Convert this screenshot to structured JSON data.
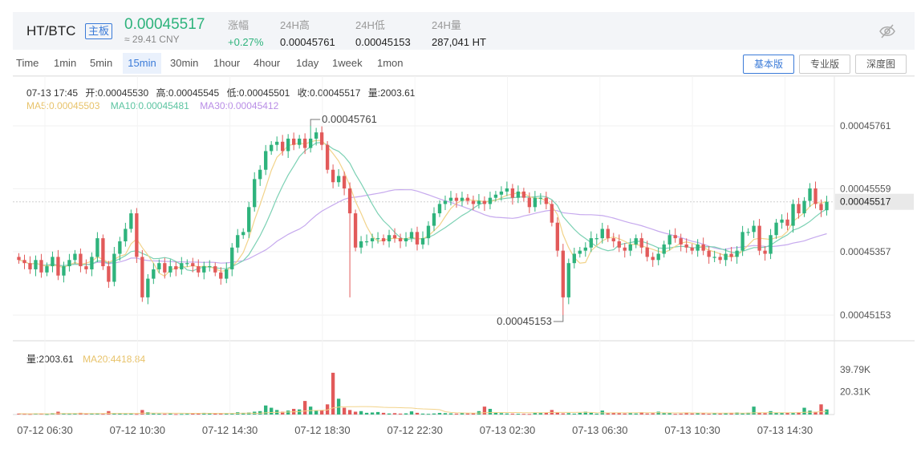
{
  "header": {
    "pair": "HT/BTC",
    "board_badge": "主板",
    "price": "0.00045517",
    "price_cny": "≈ 29.41 CNY",
    "stats": [
      {
        "label": "涨幅",
        "value": "+0.27%",
        "color": "#2eb37c"
      },
      {
        "label": "24H高",
        "value": "0.00045761"
      },
      {
        "label": "24H低",
        "value": "0.00045153"
      },
      {
        "label": "24H量",
        "value": "287,041 HT"
      }
    ],
    "hide_icon": "eye-slash-icon"
  },
  "timeframes": {
    "items": [
      "Time",
      "1min",
      "5min",
      "15min",
      "30min",
      "1hour",
      "4hour",
      "1day",
      "1week",
      "1mon"
    ],
    "active_index": 3
  },
  "view_buttons": {
    "items": [
      "基本版",
      "专业版",
      "深度图"
    ],
    "active_index": 0
  },
  "ohlc": {
    "time": "07-13 17:45",
    "open": "开:0.00045530",
    "high": "高:0.00045545",
    "low": "低:0.00045501",
    "close": "收:0.00045517",
    "volume": "量:2003.61"
  },
  "ma": {
    "ma5": "MA5:0.00045503",
    "ma10": "MA10:0.00045481",
    "ma30": "MA30:0.00045412"
  },
  "volume_info": {
    "volume": "量:2003.61",
    "ma20": "MA20:4418.84"
  },
  "colors": {
    "up": "#2eb37c",
    "down": "#e25a5a",
    "ma5": "#f2d38a",
    "ma10": "#7cd1b4",
    "ma30": "#c6a9ee",
    "accent": "#3b7bd8"
  },
  "chart_data": {
    "type": "candlestick",
    "price_axis": {
      "ticks": [
        "0.00045761",
        "0.00045559",
        "0.00045357",
        "0.00045153"
      ],
      "tick_values": [
        0.00045761,
        0.00045559,
        0.00045357,
        0.00045153
      ],
      "current": "0.00045517",
      "current_value": 0.00045517
    },
    "volume_axis": {
      "ticks": [
        "39.79K",
        "20.31K"
      ],
      "tick_values": [
        39790,
        20310
      ]
    },
    "x_labels": [
      "07-12 06:30",
      "07-12 10:30",
      "07-12 14:30",
      "07-12 18:30",
      "07-12 22:30",
      "07-13 02:30",
      "07-13 06:30",
      "07-13 10:30",
      "07-13 14:30"
    ],
    "high_marker": "0.00045761",
    "low_marker": "0.00045153",
    "closes": [
      0.0004533,
      0.0004532,
      0.000453,
      0.0004533,
      0.0004529,
      0.0004531,
      0.0004534,
      0.0004528,
      0.0004531,
      0.0004533,
      0.0004535,
      0.0004531,
      0.000453,
      0.0004534,
      0.000454,
      0.0004531,
      0.0004526,
      0.0004535,
      0.0004539,
      0.0004543,
      0.0004548,
      0.0004534,
      0.0004521,
      0.0004527,
      0.000453,
      0.0004532,
      0.0004529,
      0.0004531,
      0.000453,
      0.0004532,
      0.0004532,
      0.0004531,
      0.0004529,
      0.0004531,
      0.0004531,
      0.0004529,
      0.0004527,
      0.000453,
      0.0004537,
      0.0004541,
      0.0004542,
      0.000455,
      0.0004559,
      0.0004562,
      0.0004568,
      0.000457,
      0.0004571,
      0.0004568,
      0.0004572,
      0.000457,
      0.0004572,
      0.0004569,
      0.0004572,
      0.0004574,
      0.000457,
      0.0004562,
      0.0004558,
      0.000456,
      0.0004556,
      0.0004548,
      0.0004537,
      0.0004539,
      0.0004539,
      0.000454,
      0.000454,
      0.0004539,
      0.0004541,
      0.000454,
      0.0004539,
      0.000454,
      0.0004542,
      0.0004538,
      0.000454,
      0.0004544,
      0.0004548,
      0.0004551,
      0.0004552,
      0.0004553,
      0.0004552,
      0.0004553,
      0.0004552,
      0.0004551,
      0.0004552,
      0.0004551,
      0.0004553,
      0.0004554,
      0.0004555,
      0.0004556,
      0.0004553,
      0.0004555,
      0.0004553,
      0.000455,
      0.0004553,
      0.0004553,
      0.0004551,
      0.0004545,
      0.0004536,
      0.0004521,
      0.0004532,
      0.0004535,
      0.0004536,
      0.0004537,
      0.000454,
      0.000454,
      0.0004543,
      0.000454,
      0.0004539,
      0.0004537,
      0.0004536,
      0.0004538,
      0.000454,
      0.0004537,
      0.0004534,
      0.0004533,
      0.0004535,
      0.0004538,
      0.0004541,
      0.000454,
      0.0004538,
      0.0004537,
      0.0004536,
      0.0004538,
      0.0004536,
      0.0004534,
      0.0004534,
      0.0004533,
      0.0004535,
      0.0004534,
      0.0004536,
      0.0004542,
      0.0004542,
      0.0004544,
      0.0004536,
      0.0004535,
      0.0004541,
      0.0004545,
      0.0004546,
      0.0004544,
      0.0004551,
      0.0004548,
      0.0004552,
      0.0004556,
      0.0004551,
      0.0004549,
      0.00045517
    ],
    "volumes": [
      800,
      600,
      500,
      900,
      700,
      400,
      1200,
      2500,
      900,
      600,
      800,
      1500,
      700,
      900,
      1100,
      600,
      3000,
      800,
      1000,
      600,
      700,
      500,
      4000,
      2000,
      900,
      700,
      600,
      800,
      400,
      500,
      600,
      900,
      700,
      1500,
      800,
      1000,
      1200,
      700,
      900,
      2000,
      1500,
      1800,
      2500,
      3000,
      8000,
      6000,
      4000,
      2500,
      3500,
      5000,
      4500,
      12000,
      7000,
      3500,
      4000,
      9000,
      37000,
      14000,
      6000,
      4000,
      2500,
      3000,
      1500,
      1800,
      2200,
      1500,
      900,
      1200,
      800,
      1000,
      2800,
      1500,
      800,
      600,
      900,
      1400,
      1200,
      1000,
      800,
      1300,
      900,
      1100,
      3000,
      7000,
      5000,
      2000,
      1200,
      900,
      800,
      700,
      600,
      500,
      1600,
      1300,
      1500,
      4000,
      2000,
      1000,
      1200,
      800,
      1500,
      2500,
      1500,
      800,
      3500,
      1000,
      1800,
      1200,
      900,
      1200,
      900,
      2000,
      900,
      1100,
      2500,
      1200,
      1500,
      600,
      800,
      1800,
      900,
      1300,
      1000,
      700,
      1100,
      900,
      1200,
      1500,
      1800,
      1000,
      1600,
      7000,
      1400,
      1200,
      3000,
      1800,
      1300,
      1500,
      1300,
      2000,
      6000,
      3500,
      2500,
      9000,
      4500,
      3000,
      2000
    ]
  }
}
